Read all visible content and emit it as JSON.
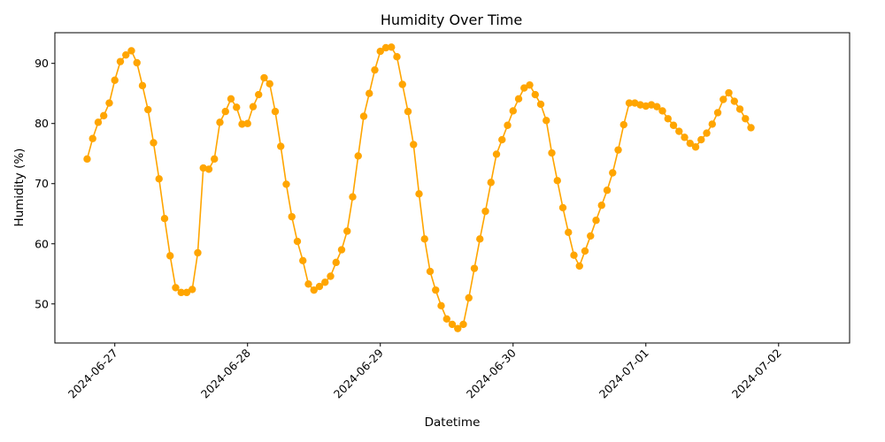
{
  "chart_data": {
    "type": "line",
    "title": "Humidity Over Time",
    "xlabel": "Datetime",
    "ylabel": "Humidity (%)",
    "ylim": [
      43.5,
      95.1
    ],
    "xlim": [
      "2024-06-26T13:10",
      "2024-07-02T12:50"
    ],
    "x_ticks": [
      "2024-06-27",
      "2024-06-28",
      "2024-06-29",
      "2024-06-30",
      "2024-07-01",
      "2024-07-02"
    ],
    "y_ticks": [
      50,
      60,
      70,
      80,
      90
    ],
    "grid": false,
    "legend": "none",
    "color": "#FFA500",
    "marker": "circle",
    "start": "2024-06-26T19:00",
    "interval_hours": 1,
    "values": [
      74.1,
      77.5,
      80.2,
      81.3,
      83.4,
      87.2,
      90.3,
      91.4,
      92.1,
      90.1,
      86.3,
      82.3,
      76.8,
      70.8,
      64.2,
      58.0,
      52.7,
      51.9,
      51.9,
      52.4,
      58.5,
      72.6,
      72.4,
      74.1,
      80.2,
      82.0,
      84.1,
      82.7,
      79.9,
      80.0,
      82.8,
      84.8,
      87.6,
      86.6,
      82.0,
      76.2,
      69.9,
      64.5,
      60.4,
      57.2,
      53.3,
      52.3,
      52.9,
      53.6,
      54.6,
      56.9,
      59.0,
      62.1,
      67.8,
      74.6,
      81.2,
      85.0,
      88.9,
      92.0,
      92.6,
      92.7,
      91.1,
      86.5,
      82.0,
      76.5,
      68.3,
      60.8,
      55.4,
      52.3,
      49.7,
      47.5,
      46.6,
      45.9,
      46.6,
      51.0,
      55.9,
      60.8,
      65.4,
      70.2,
      74.9,
      77.3,
      79.7,
      82.1,
      84.1,
      85.9,
      86.4,
      84.8,
      83.2,
      80.5,
      75.1,
      70.5,
      66.0,
      61.9,
      58.1,
      56.3,
      58.8,
      61.3,
      63.9,
      66.4,
      68.9,
      71.8,
      75.6,
      79.8,
      83.4,
      83.4,
      83.1,
      82.9,
      83.1,
      82.8,
      82.1,
      80.8,
      79.7,
      78.7,
      77.7,
      76.7,
      76.1,
      77.3,
      78.4,
      79.9,
      81.8,
      84.0,
      85.1,
      83.7,
      82.4,
      80.8,
      79.3
    ]
  }
}
